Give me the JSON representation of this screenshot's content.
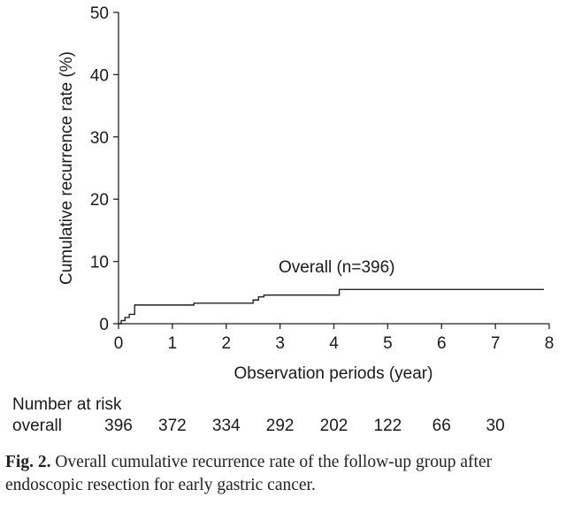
{
  "chart_data": {
    "type": "line",
    "xlabel": "Observation periods (year)",
    "ylabel": "Cumulative recurrence rate (%)",
    "xlim": [
      0,
      8
    ],
    "ylim": [
      0,
      50
    ],
    "xticks": [
      "0",
      "1",
      "2",
      "3",
      "4",
      "5",
      "6",
      "7",
      "8"
    ],
    "yticks": [
      "0",
      "10",
      "20",
      "30",
      "40",
      "50"
    ],
    "grid": false,
    "series": [
      {
        "name": "Overall (n=396)",
        "step": true,
        "x": [
          0,
          0.05,
          0.12,
          0.2,
          0.3,
          1.4,
          2.5,
          2.6,
          2.7,
          4.1,
          7.9
        ],
        "y": [
          0,
          0.5,
          1.0,
          1.5,
          3.0,
          3.3,
          3.8,
          4.3,
          4.6,
          5.5,
          5.5
        ]
      }
    ],
    "annotation": "Overall (n=396)"
  },
  "risk_table": {
    "title": "Number at risk",
    "row_label": "overall",
    "values": [
      "396",
      "372",
      "334",
      "292",
      "202",
      "122",
      "66",
      "30"
    ]
  },
  "caption": {
    "label": "Fig. 2.",
    "text": " Overall cumulative recurrence rate of the follow-up group after endoscopic resection for early gastric cancer."
  }
}
